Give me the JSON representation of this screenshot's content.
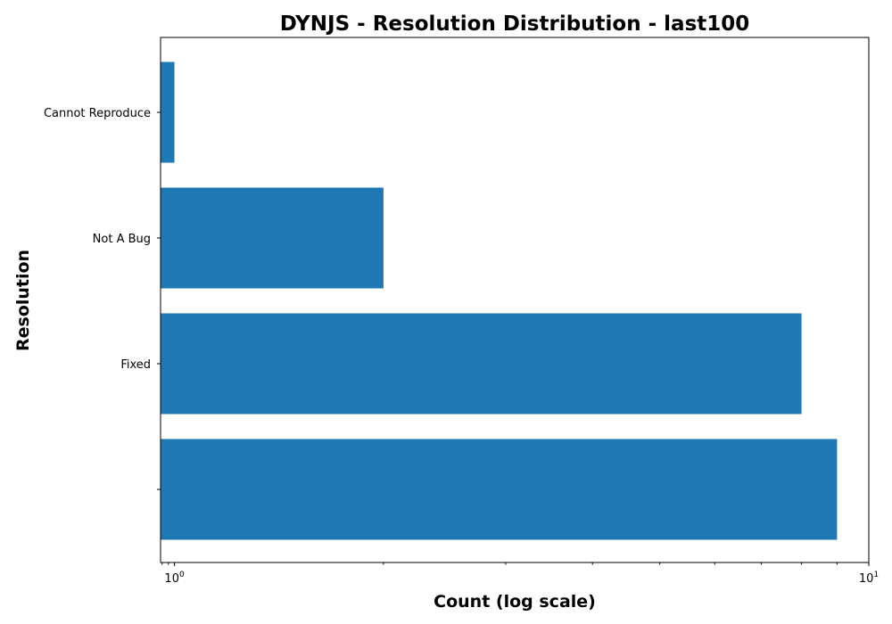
{
  "chart_data": {
    "type": "bar",
    "orientation": "horizontal",
    "title": "DYNJS - Resolution Distribution - last100",
    "xlabel": "Count (log scale)",
    "ylabel": "Resolution",
    "x_scale": "log",
    "xlim": [
      0.955,
      10
    ],
    "categories": [
      "",
      "Fixed",
      "Not A Bug",
      "Cannot Reproduce"
    ],
    "values": [
      9,
      8,
      2,
      1
    ],
    "color": "#1f77b4",
    "x_ticks": [
      {
        "value": 1,
        "base": "10",
        "exp": "0"
      },
      {
        "value": 10,
        "base": "10",
        "exp": "1"
      }
    ],
    "grid": false,
    "legend": "none"
  }
}
